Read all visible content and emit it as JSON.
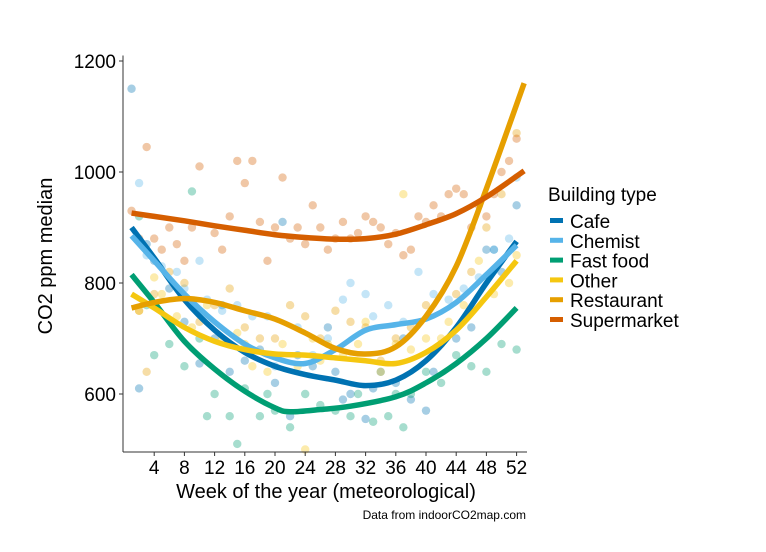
{
  "chart_data": {
    "type": "scatter",
    "title": "",
    "xlabel": "Week of the year (meteorological)",
    "ylabel": "CO2 ppm median",
    "caption": "Data from indoorCO2map.com",
    "xlim": [
      0,
      54
    ],
    "ylim": [
      495,
      1205
    ],
    "x_ticks": [
      4,
      8,
      12,
      16,
      20,
      24,
      28,
      32,
      36,
      40,
      44,
      48,
      52
    ],
    "y_ticks": [
      600,
      800,
      1000,
      1200
    ],
    "grid": false,
    "legend": {
      "title": "Building type",
      "placement": "right",
      "entries": [
        "Cafe",
        "Chemist",
        "Fast food",
        "Other",
        "Restaurant",
        "Supermarket"
      ]
    },
    "series": [
      {
        "name": "Cafe",
        "color": "#0072B2",
        "smooth": {
          "x": [
            1,
            4,
            8,
            12,
            16,
            20,
            24,
            28,
            32,
            36,
            40,
            44,
            48,
            52
          ],
          "y": [
            900,
            845,
            770,
            715,
            675,
            650,
            635,
            625,
            615,
            625,
            660,
            720,
            800,
            875
          ]
        },
        "points": [
          [
            1,
            1150
          ],
          [
            2,
            610
          ],
          [
            3,
            870
          ],
          [
            4,
            840
          ],
          [
            6,
            790
          ],
          [
            8,
            730
          ],
          [
            10,
            655
          ],
          [
            12,
            700
          ],
          [
            13,
            760
          ],
          [
            14,
            640
          ],
          [
            16,
            660
          ],
          [
            18,
            680
          ],
          [
            20,
            620
          ],
          [
            21,
            910
          ],
          [
            22,
            560
          ],
          [
            23,
            670
          ],
          [
            25,
            650
          ],
          [
            27,
            720
          ],
          [
            28,
            640
          ],
          [
            29,
            590
          ],
          [
            30,
            600
          ],
          [
            32,
            555
          ],
          [
            33,
            610
          ],
          [
            34,
            640
          ],
          [
            36,
            620
          ],
          [
            37,
            700
          ],
          [
            38,
            590
          ],
          [
            40,
            570
          ],
          [
            41,
            640
          ],
          [
            44,
            700
          ],
          [
            46,
            720
          ],
          [
            48,
            860
          ],
          [
            49,
            860
          ],
          [
            50,
            820
          ],
          [
            52,
            940
          ]
        ]
      },
      {
        "name": "Chemist",
        "color": "#56B4E9",
        "smooth": {
          "x": [
            1,
            4,
            8,
            12,
            16,
            20,
            24,
            28,
            32,
            36,
            40,
            44,
            48,
            52
          ],
          "y": [
            885,
            840,
            780,
            730,
            690,
            665,
            655,
            680,
            715,
            725,
            735,
            765,
            815,
            868
          ]
        },
        "points": [
          [
            2,
            980
          ],
          [
            3,
            850
          ],
          [
            5,
            830
          ],
          [
            7,
            820
          ],
          [
            8,
            790
          ],
          [
            10,
            840
          ],
          [
            11,
            770
          ],
          [
            13,
            750
          ],
          [
            15,
            760
          ],
          [
            17,
            740
          ],
          [
            19,
            740
          ],
          [
            20,
            650
          ],
          [
            23,
            720
          ],
          [
            25,
            670
          ],
          [
            27,
            700
          ],
          [
            29,
            770
          ],
          [
            30,
            800
          ],
          [
            32,
            780
          ],
          [
            33,
            740
          ],
          [
            35,
            760
          ],
          [
            37,
            730
          ],
          [
            39,
            820
          ],
          [
            41,
            780
          ],
          [
            43,
            770
          ],
          [
            45,
            790
          ],
          [
            47,
            810
          ],
          [
            49,
            860
          ],
          [
            51,
            880
          ],
          [
            52,
            990
          ]
        ]
      },
      {
        "name": "Fast food",
        "color": "#009E73",
        "smooth": {
          "x": [
            1,
            4,
            8,
            12,
            16,
            20,
            22,
            26,
            30,
            36,
            40,
            44,
            48,
            52
          ],
          "y": [
            815,
            765,
            695,
            645,
            605,
            575,
            568,
            572,
            578,
            595,
            620,
            655,
            700,
            755
          ]
        },
        "points": [
          [
            2,
            920
          ],
          [
            3,
            760
          ],
          [
            4,
            670
          ],
          [
            6,
            690
          ],
          [
            8,
            650
          ],
          [
            9,
            965
          ],
          [
            10,
            700
          ],
          [
            11,
            560
          ],
          [
            12,
            600
          ],
          [
            14,
            560
          ],
          [
            15,
            510
          ],
          [
            16,
            610
          ],
          [
            18,
            560
          ],
          [
            19,
            600
          ],
          [
            20,
            570
          ],
          [
            22,
            540
          ],
          [
            24,
            600
          ],
          [
            26,
            580
          ],
          [
            28,
            570
          ],
          [
            30,
            560
          ],
          [
            31,
            600
          ],
          [
            33,
            550
          ],
          [
            35,
            560
          ],
          [
            36,
            600
          ],
          [
            37,
            540
          ],
          [
            38,
            600
          ],
          [
            40,
            640
          ],
          [
            42,
            620
          ],
          [
            44,
            670
          ],
          [
            46,
            650
          ],
          [
            48,
            640
          ],
          [
            50,
            690
          ],
          [
            52,
            680
          ]
        ]
      },
      {
        "name": "Other",
        "color": "#F5C710",
        "smooth": {
          "x": [
            1,
            4,
            8,
            12,
            16,
            20,
            24,
            28,
            32,
            36,
            40,
            44,
            48,
            52
          ],
          "y": [
            780,
            755,
            720,
            695,
            680,
            672,
            670,
            665,
            660,
            655,
            675,
            715,
            775,
            840
          ]
        },
        "points": [
          [
            2,
            750
          ],
          [
            4,
            810
          ],
          [
            5,
            780
          ],
          [
            7,
            740
          ],
          [
            9,
            720
          ],
          [
            11,
            760
          ],
          [
            13,
            700
          ],
          [
            15,
            710
          ],
          [
            16,
            690
          ],
          [
            17,
            650
          ],
          [
            19,
            640
          ],
          [
            21,
            690
          ],
          [
            23,
            650
          ],
          [
            24,
            500
          ],
          [
            25,
            700
          ],
          [
            26,
            660
          ],
          [
            27,
            690
          ],
          [
            29,
            670
          ],
          [
            31,
            690
          ],
          [
            32,
            730
          ],
          [
            34,
            640
          ],
          [
            36,
            690
          ],
          [
            37,
            960
          ],
          [
            38,
            680
          ],
          [
            40,
            700
          ],
          [
            42,
            700
          ],
          [
            43,
            730
          ],
          [
            45,
            760
          ],
          [
            47,
            840
          ],
          [
            49,
            780
          ],
          [
            51,
            800
          ],
          [
            52,
            850
          ]
        ]
      },
      {
        "name": "Restaurant",
        "color": "#E69F00",
        "smooth": {
          "x": [
            1,
            4,
            8,
            12,
            16,
            20,
            24,
            28,
            32,
            36,
            40,
            44,
            48,
            53
          ],
          "y": [
            755,
            765,
            772,
            765,
            750,
            735,
            710,
            682,
            672,
            685,
            740,
            830,
            970,
            1160
          ]
        },
        "points": [
          [
            2,
            750
          ],
          [
            3,
            640
          ],
          [
            4,
            780
          ],
          [
            6,
            820
          ],
          [
            8,
            800
          ],
          [
            10,
            730
          ],
          [
            12,
            760
          ],
          [
            14,
            790
          ],
          [
            16,
            720
          ],
          [
            18,
            700
          ],
          [
            20,
            700
          ],
          [
            22,
            760
          ],
          [
            24,
            740
          ],
          [
            26,
            700
          ],
          [
            28,
            750
          ],
          [
            30,
            730
          ],
          [
            32,
            720
          ],
          [
            34,
            660
          ],
          [
            36,
            700
          ],
          [
            38,
            720
          ],
          [
            40,
            760
          ],
          [
            42,
            690
          ],
          [
            44,
            780
          ],
          [
            46,
            820
          ],
          [
            48,
            900
          ],
          [
            50,
            960
          ],
          [
            52,
            1070
          ]
        ]
      },
      {
        "name": "Supermarket",
        "color": "#D55E00",
        "smooth": {
          "x": [
            1,
            4,
            8,
            12,
            16,
            20,
            24,
            28,
            32,
            36,
            40,
            44,
            48,
            53
          ],
          "y": [
            926,
            920,
            912,
            903,
            895,
            887,
            882,
            879,
            880,
            888,
            905,
            925,
            955,
            1002
          ]
        },
        "points": [
          [
            1,
            930
          ],
          [
            2,
            880
          ],
          [
            3,
            1045
          ],
          [
            4,
            880
          ],
          [
            5,
            860
          ],
          [
            6,
            900
          ],
          [
            7,
            870
          ],
          [
            8,
            840
          ],
          [
            9,
            900
          ],
          [
            10,
            1010
          ],
          [
            12,
            890
          ],
          [
            13,
            860
          ],
          [
            14,
            920
          ],
          [
            15,
            1020
          ],
          [
            16,
            980
          ],
          [
            17,
            1020
          ],
          [
            18,
            910
          ],
          [
            19,
            840
          ],
          [
            20,
            900
          ],
          [
            21,
            990
          ],
          [
            22,
            880
          ],
          [
            23,
            900
          ],
          [
            24,
            870
          ],
          [
            25,
            940
          ],
          [
            26,
            900
          ],
          [
            27,
            860
          ],
          [
            28,
            880
          ],
          [
            29,
            910
          ],
          [
            30,
            880
          ],
          [
            31,
            890
          ],
          [
            32,
            920
          ],
          [
            33,
            910
          ],
          [
            34,
            900
          ],
          [
            35,
            870
          ],
          [
            36,
            890
          ],
          [
            37,
            850
          ],
          [
            38,
            860
          ],
          [
            39,
            920
          ],
          [
            40,
            910
          ],
          [
            41,
            940
          ],
          [
            42,
            920
          ],
          [
            43,
            960
          ],
          [
            44,
            970
          ],
          [
            45,
            960
          ],
          [
            46,
            900
          ],
          [
            47,
            940
          ],
          [
            48,
            920
          ],
          [
            49,
            960
          ],
          [
            50,
            1000
          ],
          [
            51,
            1020
          ],
          [
            52,
            1060
          ]
        ]
      }
    ]
  }
}
